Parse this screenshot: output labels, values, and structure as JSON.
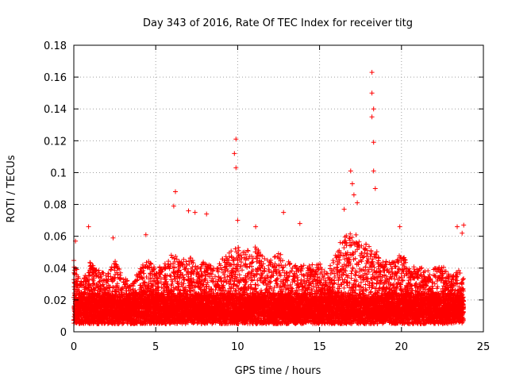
{
  "chart_data": {
    "type": "scatter",
    "title": "Day 343 of 2016, Rate Of TEC Index for receiver titg",
    "xlabel": "GPS time / hours",
    "ylabel": "ROTI / TECUs",
    "xlim": [
      0,
      25
    ],
    "ylim": [
      0,
      0.18
    ],
    "xticks": [
      0,
      5,
      10,
      15,
      20,
      25
    ],
    "xtick_labels": [
      "0",
      "5",
      "10",
      "15",
      "20",
      "25"
    ],
    "yticks": [
      0,
      0.02,
      0.04,
      0.06,
      0.08,
      0.1,
      0.12,
      0.14,
      0.16,
      0.18
    ],
    "ytick_labels": [
      "0",
      "0.02",
      "0.04",
      "0.06",
      "0.08",
      "0.1",
      "0.12",
      "0.14",
      "0.16",
      "0.18"
    ],
    "grid": true,
    "marker": "+",
    "marker_color": "#ff0000",
    "series": [
      {
        "name": "ROTI",
        "notable_points": [
          {
            "x": 0.1,
            "y": 0.057
          },
          {
            "x": 0.9,
            "y": 0.066
          },
          {
            "x": 2.4,
            "y": 0.059
          },
          {
            "x": 4.4,
            "y": 0.061
          },
          {
            "x": 6.2,
            "y": 0.088
          },
          {
            "x": 6.1,
            "y": 0.079
          },
          {
            "x": 7.0,
            "y": 0.076
          },
          {
            "x": 7.4,
            "y": 0.075
          },
          {
            "x": 8.1,
            "y": 0.074
          },
          {
            "x": 9.8,
            "y": 0.112
          },
          {
            "x": 9.9,
            "y": 0.121
          },
          {
            "x": 9.9,
            "y": 0.103
          },
          {
            "x": 10.0,
            "y": 0.07
          },
          {
            "x": 11.1,
            "y": 0.066
          },
          {
            "x": 12.8,
            "y": 0.075
          },
          {
            "x": 13.8,
            "y": 0.068
          },
          {
            "x": 16.5,
            "y": 0.077
          },
          {
            "x": 16.9,
            "y": 0.101
          },
          {
            "x": 17.0,
            "y": 0.093
          },
          {
            "x": 17.1,
            "y": 0.086
          },
          {
            "x": 17.3,
            "y": 0.081
          },
          {
            "x": 18.2,
            "y": 0.163
          },
          {
            "x": 18.2,
            "y": 0.15
          },
          {
            "x": 18.3,
            "y": 0.14
          },
          {
            "x": 18.2,
            "y": 0.135
          },
          {
            "x": 18.3,
            "y": 0.119
          },
          {
            "x": 18.3,
            "y": 0.101
          },
          {
            "x": 18.4,
            "y": 0.09
          },
          {
            "x": 19.9,
            "y": 0.066
          },
          {
            "x": 23.4,
            "y": 0.066
          },
          {
            "x": 23.8,
            "y": 0.067
          },
          {
            "x": 23.7,
            "y": 0.062
          }
        ],
        "activity_envelope": [
          {
            "x": 0,
            "y": 0.045
          },
          {
            "x": 0.5,
            "y": 0.03
          },
          {
            "x": 1,
            "y": 0.045
          },
          {
            "x": 1.5,
            "y": 0.04
          },
          {
            "x": 2,
            "y": 0.035
          },
          {
            "x": 2.5,
            "y": 0.045
          },
          {
            "x": 3,
            "y": 0.035
          },
          {
            "x": 3.5,
            "y": 0.03
          },
          {
            "x": 4,
            "y": 0.04
          },
          {
            "x": 4.5,
            "y": 0.045
          },
          {
            "x": 5,
            "y": 0.04
          },
          {
            "x": 5.5,
            "y": 0.042
          },
          {
            "x": 6,
            "y": 0.05
          },
          {
            "x": 6.5,
            "y": 0.045
          },
          {
            "x": 7,
            "y": 0.048
          },
          {
            "x": 7.5,
            "y": 0.042
          },
          {
            "x": 8,
            "y": 0.045
          },
          {
            "x": 8.5,
            "y": 0.04
          },
          {
            "x": 9,
            "y": 0.045
          },
          {
            "x": 9.5,
            "y": 0.052
          },
          {
            "x": 10,
            "y": 0.055
          },
          {
            "x": 10.5,
            "y": 0.05
          },
          {
            "x": 11,
            "y": 0.055
          },
          {
            "x": 11.5,
            "y": 0.048
          },
          {
            "x": 12,
            "y": 0.045
          },
          {
            "x": 12.5,
            "y": 0.05
          },
          {
            "x": 13,
            "y": 0.045
          },
          {
            "x": 13.5,
            "y": 0.042
          },
          {
            "x": 14,
            "y": 0.045
          },
          {
            "x": 14.5,
            "y": 0.042
          },
          {
            "x": 15,
            "y": 0.045
          },
          {
            "x": 15.5,
            "y": 0.038
          },
          {
            "x": 16,
            "y": 0.052
          },
          {
            "x": 16.5,
            "y": 0.06
          },
          {
            "x": 17,
            "y": 0.065
          },
          {
            "x": 17.5,
            "y": 0.058
          },
          {
            "x": 18,
            "y": 0.055
          },
          {
            "x": 18.5,
            "y": 0.052
          },
          {
            "x": 19,
            "y": 0.045
          },
          {
            "x": 19.5,
            "y": 0.045
          },
          {
            "x": 20,
            "y": 0.05
          },
          {
            "x": 20.5,
            "y": 0.04
          },
          {
            "x": 21,
            "y": 0.042
          },
          {
            "x": 21.5,
            "y": 0.038
          },
          {
            "x": 22,
            "y": 0.04
          },
          {
            "x": 22.5,
            "y": 0.042
          },
          {
            "x": 23,
            "y": 0.035
          },
          {
            "x": 23.5,
            "y": 0.04
          },
          {
            "x": 23.8,
            "y": 0.035
          }
        ],
        "baseline_range": [
          0.005,
          0.02
        ],
        "x_range": [
          0,
          23.8
        ]
      }
    ]
  }
}
